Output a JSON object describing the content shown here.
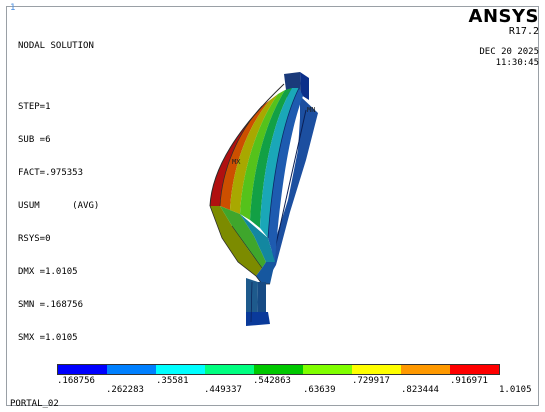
{
  "corner_mark": "1",
  "title": "NODAL SOLUTION",
  "info_lines": [
    "STEP=1",
    "SUB =6",
    "FACT=.975353",
    "USUM      (AVG)",
    "RSYS=0",
    "DMX =1.0105",
    "SMN =.168756",
    "SMX =1.0105"
  ],
  "brand": {
    "name": "ANSYS",
    "version": "R17.2",
    "date": "DEC 20 2025",
    "time": "11:30:45"
  },
  "markers": {
    "max_label": "MX",
    "min_label": "MN"
  },
  "legend": {
    "colors": [
      "#0000ff",
      "#0080ff",
      "#00ffff",
      "#00ff80",
      "#00c800",
      "#80ff00",
      "#ffff00",
      "#ff9900",
      "#ff0000"
    ],
    "row1": [
      ".168756",
      ".35581",
      ".542863",
      ".729917",
      ".916971"
    ],
    "row2": [
      ".262283",
      ".449337",
      ".63639",
      ".823444",
      "1.0105"
    ]
  },
  "footer": "PORTAL_02"
}
